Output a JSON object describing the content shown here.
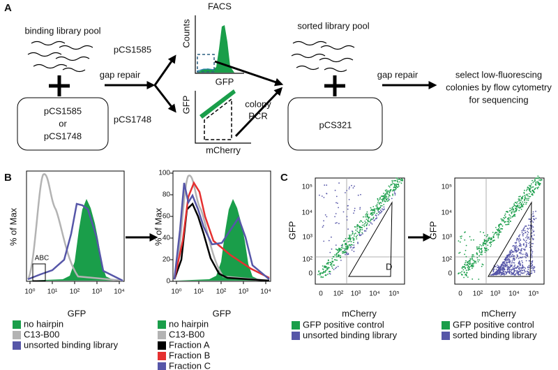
{
  "panel_a": {
    "label": "A",
    "pool_text": "binding library pool",
    "plasmid_box": [
      "pCS1585",
      "or",
      "pCS1748"
    ],
    "gap_repair_1": "gap repair",
    "branch_top": "pCS1585",
    "branch_bottom": "pCS1748",
    "facs_title": "FACS",
    "hist_ylabel": "Counts",
    "hist_xlabel": "GFP",
    "scatter_ylabel": "GFP",
    "scatter_xlabel": "mCherry",
    "colony_pcr": [
      "colony",
      "PCR"
    ],
    "sorted_pool": "sorted library pool",
    "box2": "pCS321",
    "gap_repair_2": "gap repair",
    "select": [
      "select low-fluorescing",
      "colonies by flow cytometry",
      "for sequencing"
    ]
  },
  "panel_b": {
    "label": "B",
    "y_label": "% of Max",
    "yticks": [
      "0",
      "20",
      "40",
      "60",
      "80",
      "100"
    ],
    "xticks": [
      "10⁰",
      "10¹",
      "10²",
      "10³",
      "10⁴"
    ],
    "x_label": "GFP",
    "gate_label": "ABC",
    "left_legend": [
      {
        "name": "no hairpin",
        "color": "#1a9e4a"
      },
      {
        "name": "C13-B00",
        "color": "#b3b3b3"
      },
      {
        "name": "unsorted binding library",
        "color": "#5656a8"
      }
    ],
    "right_legend": [
      {
        "name": "no hairpin",
        "color": "#1a9e4a"
      },
      {
        "name": "C13-B00",
        "color": "#b3b3b3"
      },
      {
        "name": "Fraction A",
        "color": "#000000"
      },
      {
        "name": "Fraction B",
        "color": "#e53030"
      },
      {
        "name": "Fraction C",
        "color": "#5656a8"
      }
    ]
  },
  "panel_c": {
    "label": "C",
    "y_label": "GFP",
    "x_label": "mCherry",
    "yticks": [
      "10⁵",
      "10⁴",
      "10³",
      "10²",
      "0"
    ],
    "xticks": [
      "0",
      "10²",
      "10³",
      "10⁴",
      "10⁵"
    ],
    "gate_label": "D",
    "left_legend": [
      {
        "name": "GFP positive control",
        "color": "#1a9e4a"
      },
      {
        "name": "unsorted binding library",
        "color": "#5656a8"
      }
    ],
    "right_legend": [
      {
        "name": "GFP positive control",
        "color": "#1a9e4a"
      },
      {
        "name": "sorted binding library",
        "color": "#5656a8"
      }
    ]
  }
}
